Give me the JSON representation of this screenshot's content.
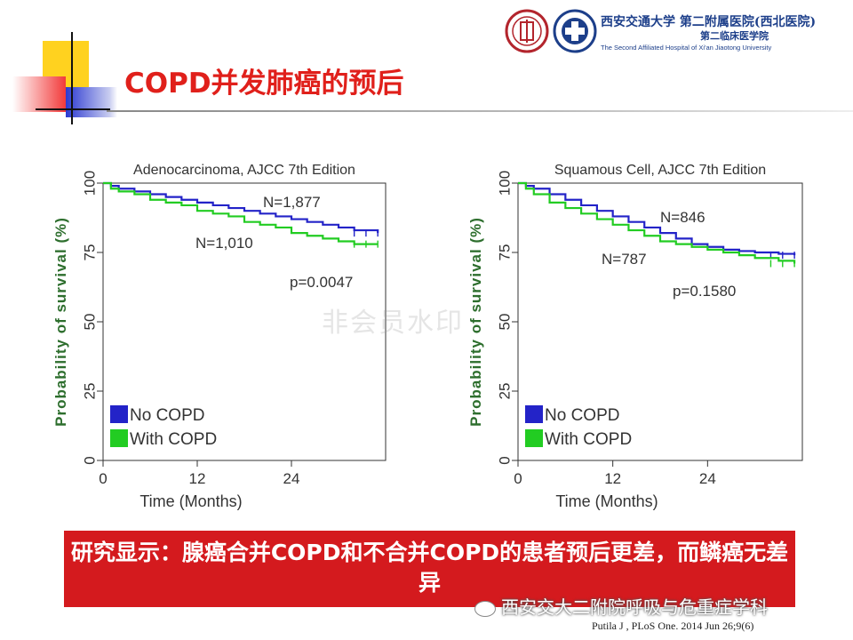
{
  "slide": {
    "title": "COPD并发肺癌的预后",
    "hospital_line1": "西安交通大学 第二附属医院(西北医院)",
    "hospital_line2": "第二临床医学院",
    "hospital_en": "The Second Affiliated Hospital of Xi'an Jiaotong University",
    "watermark": "非会员水印",
    "caption": "研究显示：腺癌合并COPD和不合并COPD的患者预后更差，而鳞癌无差异",
    "wechat": "西安交大二附院呼吸与危重症学科",
    "citation": "Putila J , PLoS One. 2014 Jun 26;9(6)"
  },
  "colors": {
    "title_red": "#e0201b",
    "caption_bg": "#d41a1e",
    "no_copd": "#2323c8",
    "with_copd": "#22cc22",
    "axis_green": "#2d6e2d"
  },
  "chart_data": [
    {
      "type": "line",
      "title": "Adenocarcinoma, AJCC 7th Edition",
      "xlabel": "Time (Months)",
      "ylabel": "Probability of survival (%)",
      "xticks": [
        "0",
        "12",
        "24"
      ],
      "yticks": [
        "0",
        "25",
        "50",
        "75",
        "100"
      ],
      "xlim": [
        0,
        36
      ],
      "ylim": [
        0,
        100
      ],
      "legend_position": "bottom-left",
      "annotations": [
        "N=1,877",
        "N=1,010",
        "p=0.0047"
      ],
      "series": [
        {
          "name": "No COPD",
          "color": "#2323c8",
          "x": [
            0,
            1,
            2,
            4,
            6,
            8,
            10,
            12,
            14,
            16,
            18,
            20,
            22,
            24,
            26,
            28,
            30,
            32,
            35
          ],
          "y": [
            100,
            99,
            98,
            97,
            96,
            95,
            94,
            93,
            92,
            91,
            90,
            89,
            88,
            87,
            86,
            85,
            84,
            83,
            82
          ]
        },
        {
          "name": "With COPD",
          "color": "#22cc22",
          "x": [
            0,
            1,
            2,
            4,
            6,
            8,
            10,
            12,
            14,
            16,
            18,
            20,
            22,
            24,
            26,
            28,
            30,
            32,
            35
          ],
          "y": [
            100,
            98,
            97,
            96,
            94,
            93,
            92,
            90,
            89,
            88,
            86,
            85,
            84,
            82,
            81,
            80,
            79,
            78,
            78
          ]
        }
      ]
    },
    {
      "type": "line",
      "title": "Squamous Cell, AJCC 7th Edition",
      "xlabel": "Time (Months)",
      "ylabel": "Probability of survival (%)",
      "xticks": [
        "0",
        "12",
        "24"
      ],
      "yticks": [
        "0",
        "25",
        "50",
        "75",
        "100"
      ],
      "xlim": [
        0,
        36
      ],
      "ylim": [
        0,
        100
      ],
      "legend_position": "bottom-left",
      "annotations": [
        "N=846",
        "N=787",
        "p=0.1580"
      ],
      "series": [
        {
          "name": "No COPD",
          "color": "#2323c8",
          "x": [
            0,
            1,
            2,
            4,
            6,
            8,
            10,
            12,
            14,
            16,
            18,
            20,
            22,
            24,
            26,
            28,
            30,
            33,
            35
          ],
          "y": [
            100,
            99,
            98,
            96,
            94,
            92,
            90,
            88,
            86,
            84,
            82,
            80,
            78,
            77,
            76,
            75.5,
            75,
            74.5,
            74
          ]
        },
        {
          "name": "With COPD",
          "color": "#22cc22",
          "x": [
            0,
            1,
            2,
            4,
            6,
            8,
            10,
            12,
            14,
            16,
            18,
            20,
            22,
            24,
            26,
            28,
            30,
            33,
            35
          ],
          "y": [
            100,
            98,
            96,
            93,
            91,
            89,
            87,
            85,
            83,
            81,
            79,
            78,
            77,
            76,
            75,
            74,
            73,
            72,
            71
          ]
        }
      ]
    }
  ]
}
